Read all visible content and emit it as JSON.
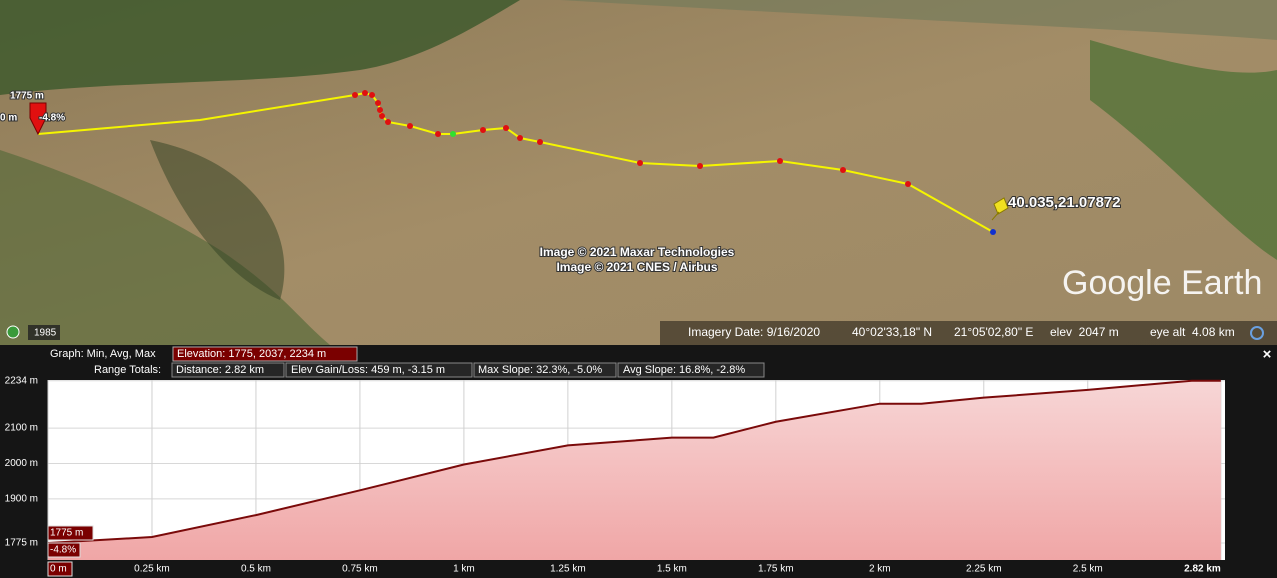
{
  "map": {
    "marker_elevation": "1775 m",
    "marker_slope": "-4.8%",
    "marker_distance": "0 m",
    "placemark": "40.035,21.07872",
    "attribution": [
      "Image © 2021 Maxar Technologies",
      "Image © 2021 CNES / Airbus"
    ],
    "logo": "Google Earth",
    "history_year": "1985"
  },
  "status_bar": {
    "imagery_date": "Imagery Date: 9/16/2020",
    "latitude": "40°02'33,18\" N",
    "longitude": "21°05'02,80\" E",
    "elevation": "elev  2047 m",
    "eye_alt": "eye alt  4.08 km"
  },
  "profile_panel": {
    "graph_label": "Graph: Min, Avg, Max",
    "elevation_stats": "Elevation: 1775, 2037, 2234 m",
    "range_label": "Range Totals:",
    "distance": "Distance: 2.82 km",
    "elev_gain_loss": "Elev Gain/Loss: 459 m, -3.15 m",
    "max_slope": "Max Slope: 32.3%, -5.0%",
    "avg_slope": "Avg Slope: 16.8%, -2.8%",
    "close": "×",
    "cursor_elevation": "1775 m",
    "cursor_slope": "-4.8%"
  },
  "chart_data": {
    "type": "area",
    "x": [
      0,
      0.25,
      0.5,
      0.75,
      1.0,
      1.25,
      1.5,
      1.6,
      1.75,
      2.0,
      2.1,
      2.25,
      2.5,
      2.75,
      2.82
    ],
    "values": [
      1775,
      1792,
      1854,
      1924,
      1997,
      2051,
      2073,
      2073,
      2118,
      2169,
      2169,
      2186,
      2208,
      2234,
      2234
    ],
    "color": "#7a0a0a",
    "fill": "#f6c4c4",
    "xlim": [
      0,
      2.83
    ],
    "ylim": [
      1727,
      2236
    ],
    "xticks": [
      {
        "value": 0,
        "label": "0 m"
      },
      {
        "value": 0.25,
        "label": "0.25 km"
      },
      {
        "value": 0.5,
        "label": "0.5 km"
      },
      {
        "value": 0.75,
        "label": "0.75 km"
      },
      {
        "value": 1,
        "label": "1 km"
      },
      {
        "value": 1.25,
        "label": "1.25 km"
      },
      {
        "value": 1.5,
        "label": "1.5 km"
      },
      {
        "value": 1.75,
        "label": "1.75 km"
      },
      {
        "value": 2,
        "label": "2 km"
      },
      {
        "value": 2.25,
        "label": "2.25 km"
      },
      {
        "value": 2.5,
        "label": "2.5 km"
      },
      {
        "value": 2.82,
        "label": "2.82 km"
      }
    ],
    "yticks": [
      {
        "value": 1775,
        "label": "1775 m"
      },
      {
        "value": 1900,
        "label": "1900 m"
      },
      {
        "value": 2000,
        "label": "2000 m"
      },
      {
        "value": 2100,
        "label": "2100 m"
      },
      {
        "value": 2234,
        "label": "2234 m"
      }
    ],
    "grid": true
  }
}
